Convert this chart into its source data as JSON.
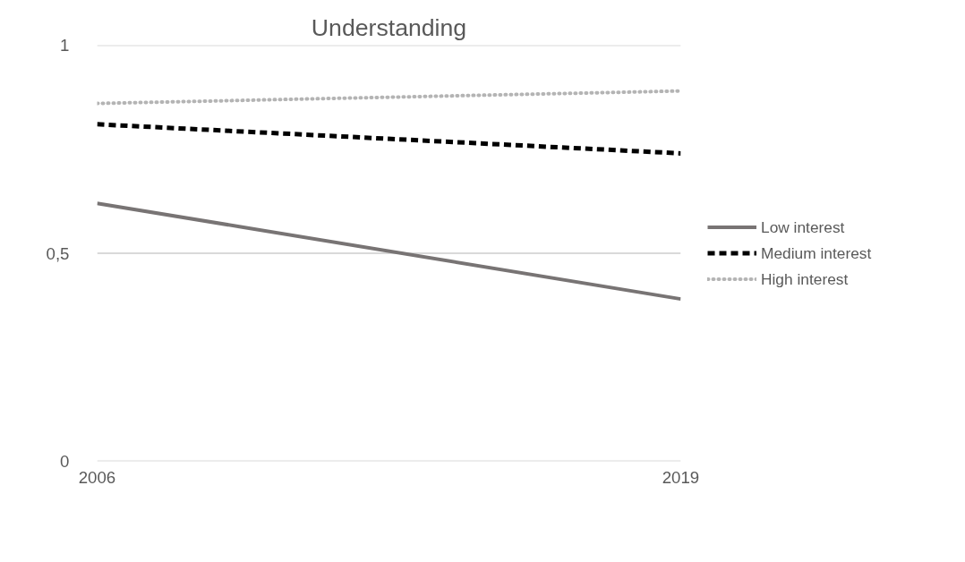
{
  "chart_data": {
    "type": "line",
    "title": "Understanding",
    "x": [
      2006,
      2019
    ],
    "series": [
      {
        "name": "Low interest",
        "color": "#787474",
        "values": [
          0.62,
          0.39
        ],
        "line_style": "solid"
      },
      {
        "name": "Medium interest",
        "color": "#000000",
        "values": [
          0.81,
          0.74
        ],
        "line_style": "dashed"
      },
      {
        "name": "High interest",
        "color": "#b4b4b4",
        "values": [
          0.86,
          0.89
        ],
        "line_style": "dotted"
      }
    ],
    "xlim": [
      2006,
      2019
    ],
    "xticks": [
      2006,
      2019
    ],
    "ylim": [
      0,
      1
    ],
    "yticks": [
      0,
      {
        "value": 0.5,
        "label": "0,5"
      },
      1
    ],
    "grid": "y",
    "legend": "right",
    "marker": "none"
  }
}
